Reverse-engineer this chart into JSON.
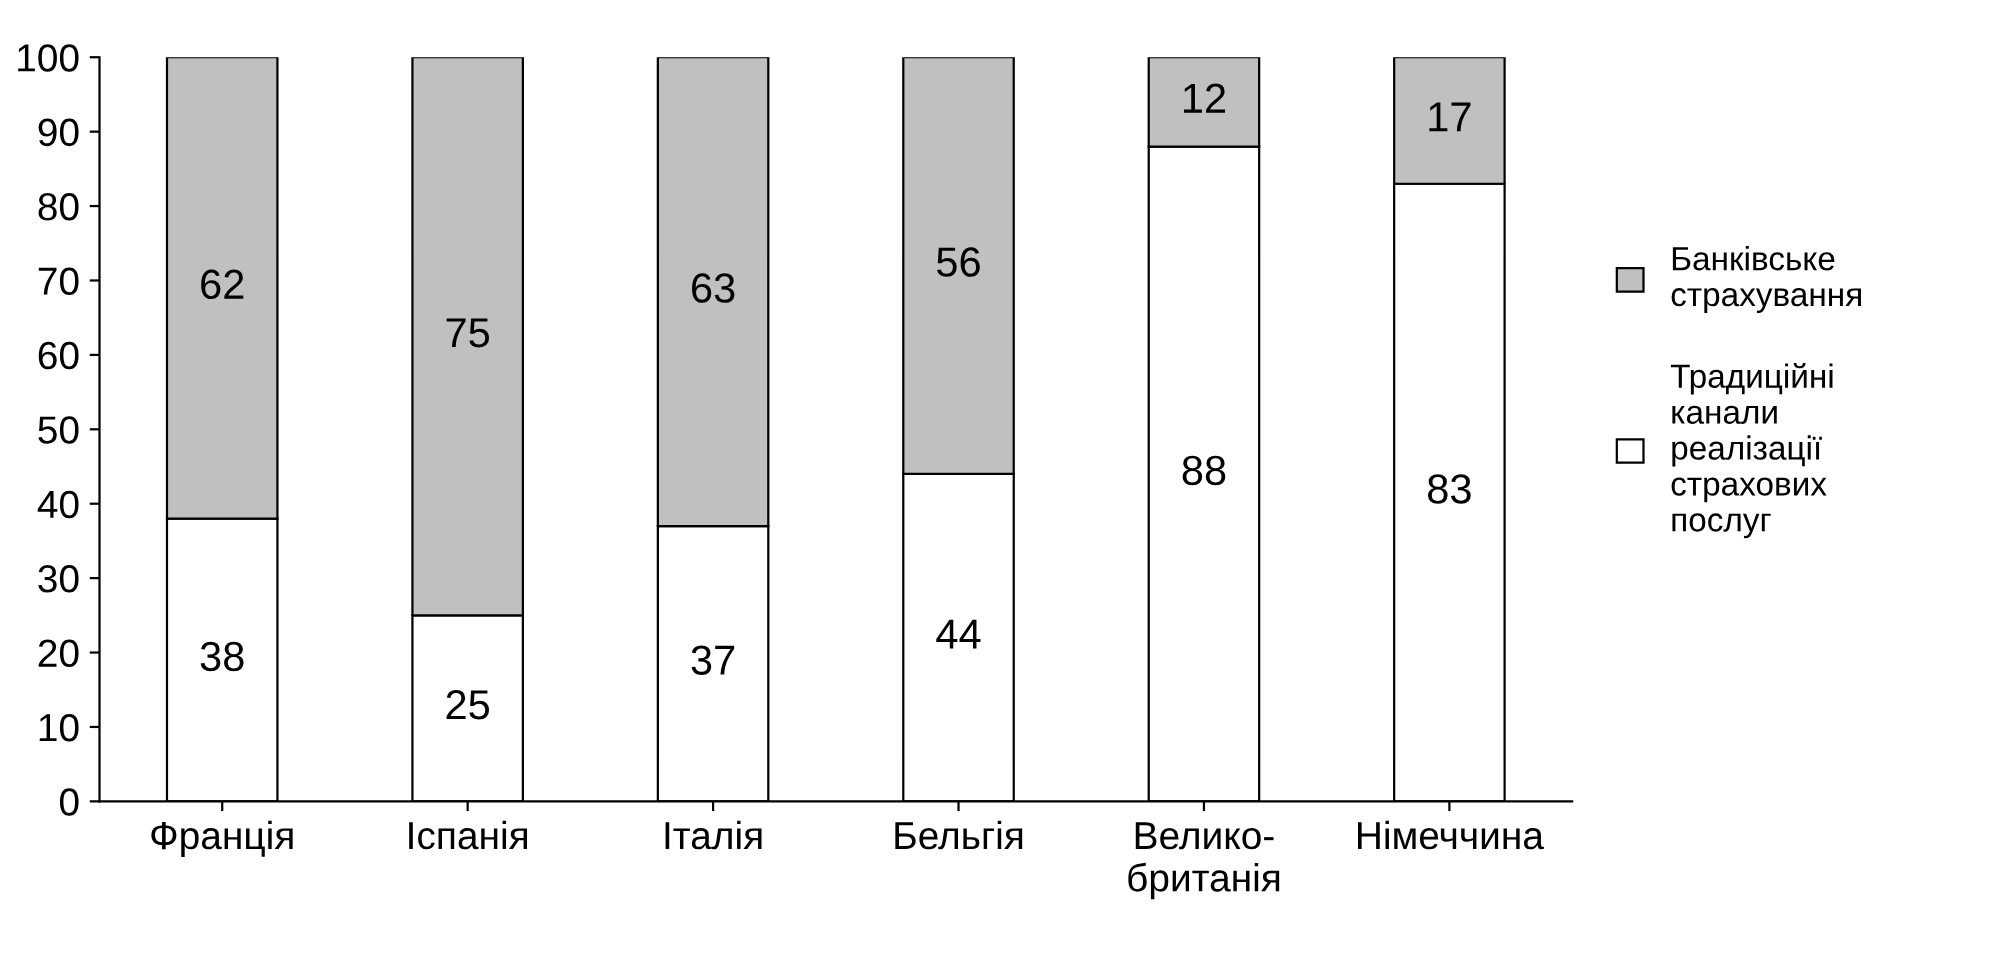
{
  "chart_data": {
    "type": "bar",
    "stacked": true,
    "categories": [
      "Франція",
      "Іспанія",
      "Італія",
      "Бельгія",
      "Велико-\nбританія",
      "Німеччина"
    ],
    "series": [
      {
        "name": "Традиційні\nканали\nреалізації\nстрахових\nпослуг",
        "color": "#ffffff",
        "values": [
          38,
          25,
          37,
          44,
          88,
          83
        ]
      },
      {
        "name": "Банківське\nстрахування",
        "color": "#c0c0c0",
        "values": [
          62,
          75,
          63,
          56,
          12,
          17
        ]
      }
    ],
    "ylim": [
      0,
      100
    ],
    "yticks": [
      0,
      10,
      20,
      30,
      40,
      50,
      60,
      70,
      80,
      90,
      100
    ],
    "data_labels": true,
    "legend": "right",
    "grid": false
  }
}
